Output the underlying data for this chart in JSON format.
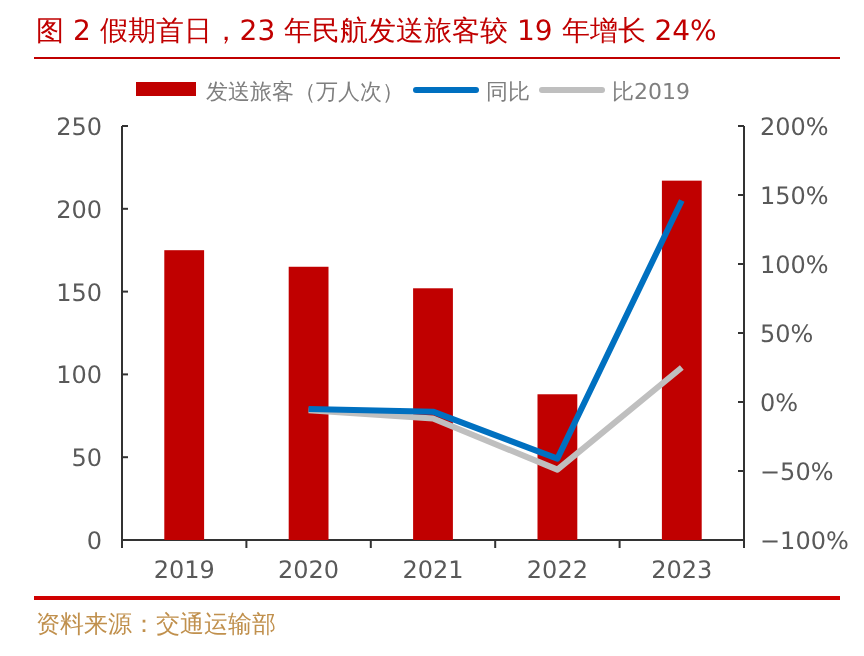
{
  "chart_data": {
    "type": "bar",
    "title": "图 2 假期首日，23 年民航发送旅客较 19 年增长 24%",
    "categories": [
      "2019",
      "2020",
      "2021",
      "2022",
      "2023"
    ],
    "series": [
      {
        "name": "发送旅客（万人次）",
        "color": "#c00000",
        "values": [
          175,
          165,
          152,
          88,
          217
        ]
      },
      {
        "name": "同比",
        "type": "line",
        "axis": "y2",
        "color": "#0070c0",
        "values": [
          null,
          -5,
          -7,
          -41,
          146
        ]
      },
      {
        "name": "比2019",
        "type": "line",
        "axis": "y2",
        "color": "#bfbfbf",
        "values": [
          null,
          -6,
          -12,
          -49,
          25
        ]
      }
    ],
    "ylim": [
      0,
      250
    ],
    "yticks": [
      0,
      50,
      100,
      150,
      200,
      250
    ],
    "y2lim": [
      -100,
      200
    ],
    "y2ticks": [
      {
        "value": -100,
        "label": "−100%"
      },
      {
        "value": -50,
        "label": "−50%"
      },
      {
        "value": 0,
        "label": "0%"
      },
      {
        "value": 50,
        "label": "50%"
      },
      {
        "value": 100,
        "label": "100%"
      },
      {
        "value": 150,
        "label": "150%"
      },
      {
        "value": 200,
        "label": "200%"
      }
    ],
    "legend": "top",
    "grid": false,
    "annotations": [
      "资料来源：交通运输部"
    ]
  }
}
